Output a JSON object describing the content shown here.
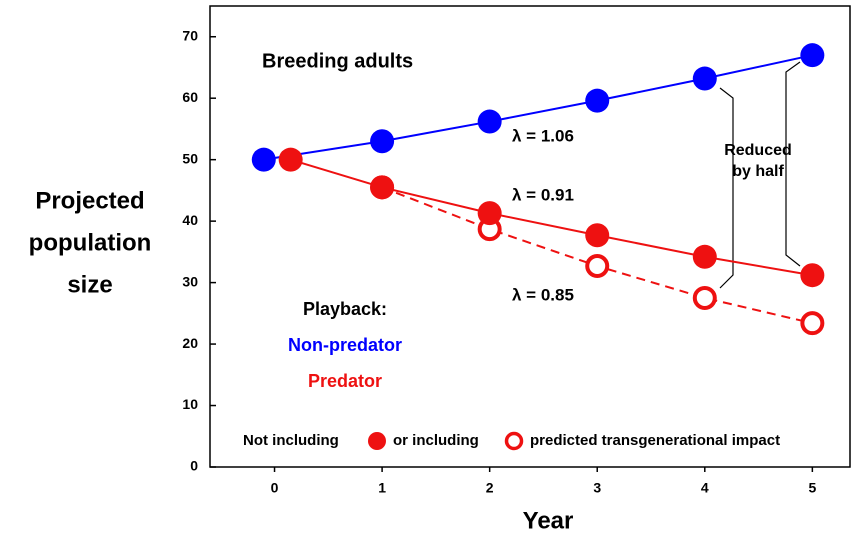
{
  "chart_data": {
    "type": "line",
    "annotations": {
      "title": "Breeding adults",
      "lambda_nonpred": "λ = 1.06",
      "lambda_pred": "λ = 0.91",
      "lambda_trans": "λ = 0.85",
      "reduced_1": "Reduced",
      "reduced_2": "by half",
      "playback": "Playback:",
      "legend_not": "Not including",
      "legend_or": "or including"
    },
    "ylabel": [
      "Projected",
      "population",
      "size"
    ],
    "xlabel": "Year",
    "xlim": [
      -0.6,
      5.35
    ],
    "xticks": [
      0,
      1,
      2,
      3,
      4,
      5
    ],
    "ylim": [
      0,
      75
    ],
    "yticks": [
      0,
      10,
      20,
      30,
      40,
      50,
      60,
      70
    ],
    "series": [
      {
        "name": "Non-predator",
        "color": "#0000ff",
        "marker": "filled",
        "dashed": false,
        "x": [
          -0.1,
          1,
          2,
          3,
          4,
          5
        ],
        "values": [
          50,
          53,
          56.2,
          59.6,
          63.2,
          67
        ]
      },
      {
        "name": "predicted transgenerational impact",
        "color": "#ee1111",
        "marker": "open",
        "dashed": true,
        "x": [
          1,
          2,
          3,
          4,
          5
        ],
        "values": [
          45.5,
          38.7,
          32.7,
          27.5,
          23.4
        ]
      },
      {
        "name": "Predator",
        "color": "#ee1111",
        "marker": "filled",
        "dashed": false,
        "x": [
          0.15,
          1,
          2,
          3,
          4,
          5
        ],
        "values": [
          50,
          45.5,
          41.3,
          37.7,
          34.2,
          31.2
        ]
      }
    ]
  }
}
